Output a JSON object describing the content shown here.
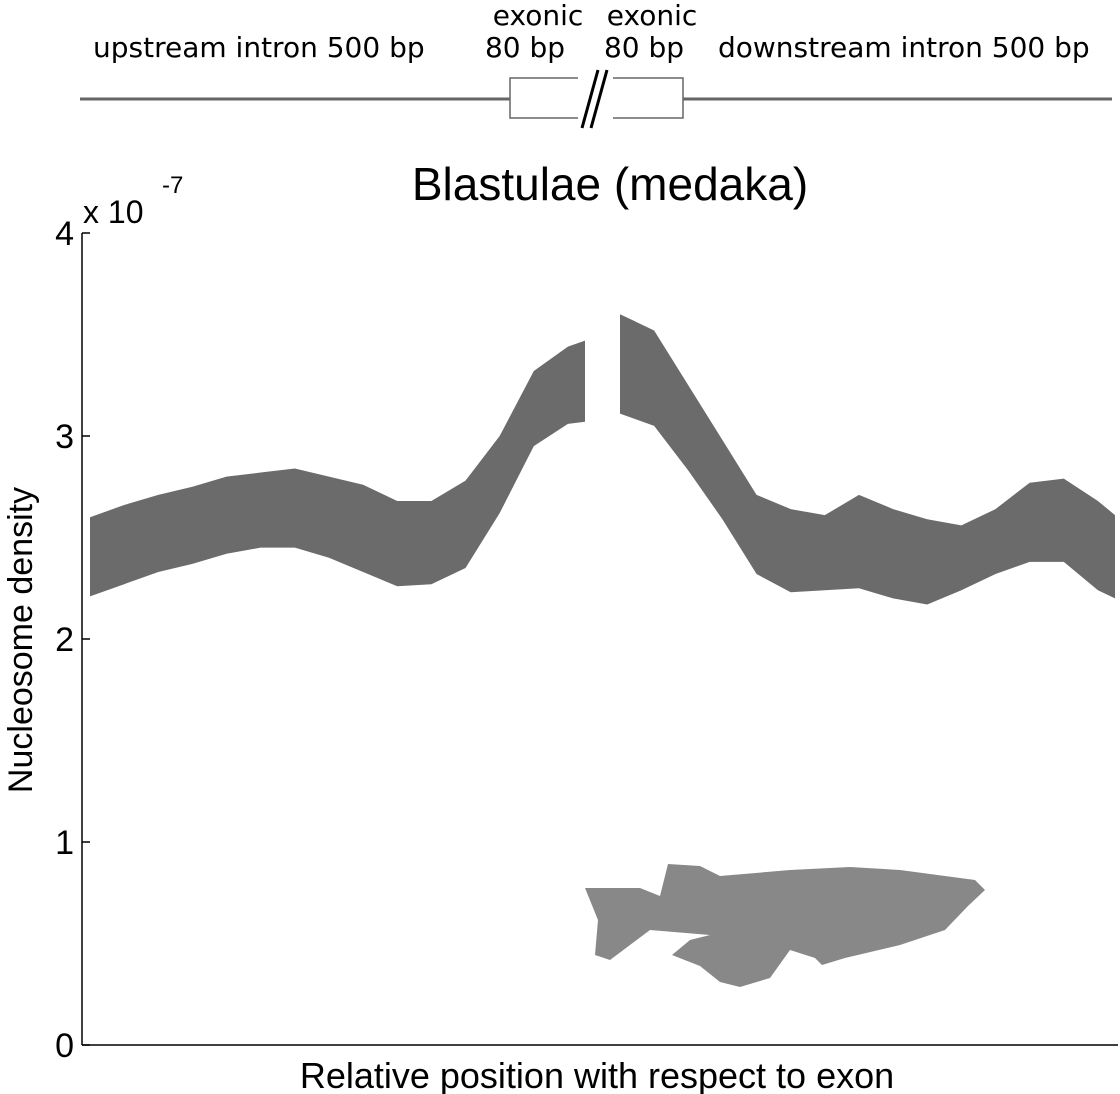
{
  "diagram": {
    "upstream": "upstream intron 500 bp",
    "exon_left": [
      "exonic",
      "80 bp"
    ],
    "exon_right": [
      "exonic",
      "80 bp"
    ],
    "downstream": "downstream intron 500 bp"
  },
  "chart_data": {
    "type": "band",
    "title": "Blastulae (medaka)",
    "ylabel": "Nucleosome density",
    "xlabel": "Relative position with respect to exon",
    "exponent_label": "x 10",
    "exponent": "-7",
    "color": "#6b6b6b",
    "ylim": [
      0,
      4
    ],
    "yticks": [
      0,
      1,
      2,
      3,
      4
    ],
    "segments": [
      {
        "x": [
          -500,
          -460,
          -420,
          -380,
          -340,
          -300,
          -260,
          -220,
          -180,
          -140,
          -100,
          -60,
          -20,
          20,
          60,
          80
        ],
        "upper": [
          2.6,
          2.66,
          2.71,
          2.75,
          2.8,
          2.82,
          2.84,
          2.8,
          2.76,
          2.68,
          2.68,
          2.78,
          3.0,
          3.32,
          3.44,
          3.47
        ],
        "lower": [
          2.21,
          2.27,
          2.33,
          2.37,
          2.42,
          2.45,
          2.45,
          2.4,
          2.33,
          2.26,
          2.27,
          2.35,
          2.62,
          2.95,
          3.06,
          3.07
        ]
      },
      {
        "x": [
          -80,
          -40,
          0,
          40,
          80,
          120,
          160,
          200,
          240,
          280,
          320,
          360,
          400,
          440,
          480,
          500
        ],
        "upper": [
          3.6,
          3.52,
          3.25,
          2.98,
          2.71,
          2.64,
          2.61,
          2.71,
          2.64,
          2.59,
          2.56,
          2.64,
          2.77,
          2.79,
          2.68,
          2.61
        ],
        "lower": [
          3.11,
          3.05,
          2.83,
          2.59,
          2.32,
          2.23,
          2.24,
          2.25,
          2.2,
          2.17,
          2.24,
          2.32,
          2.38,
          2.38,
          2.24,
          2.2
        ]
      }
    ]
  }
}
